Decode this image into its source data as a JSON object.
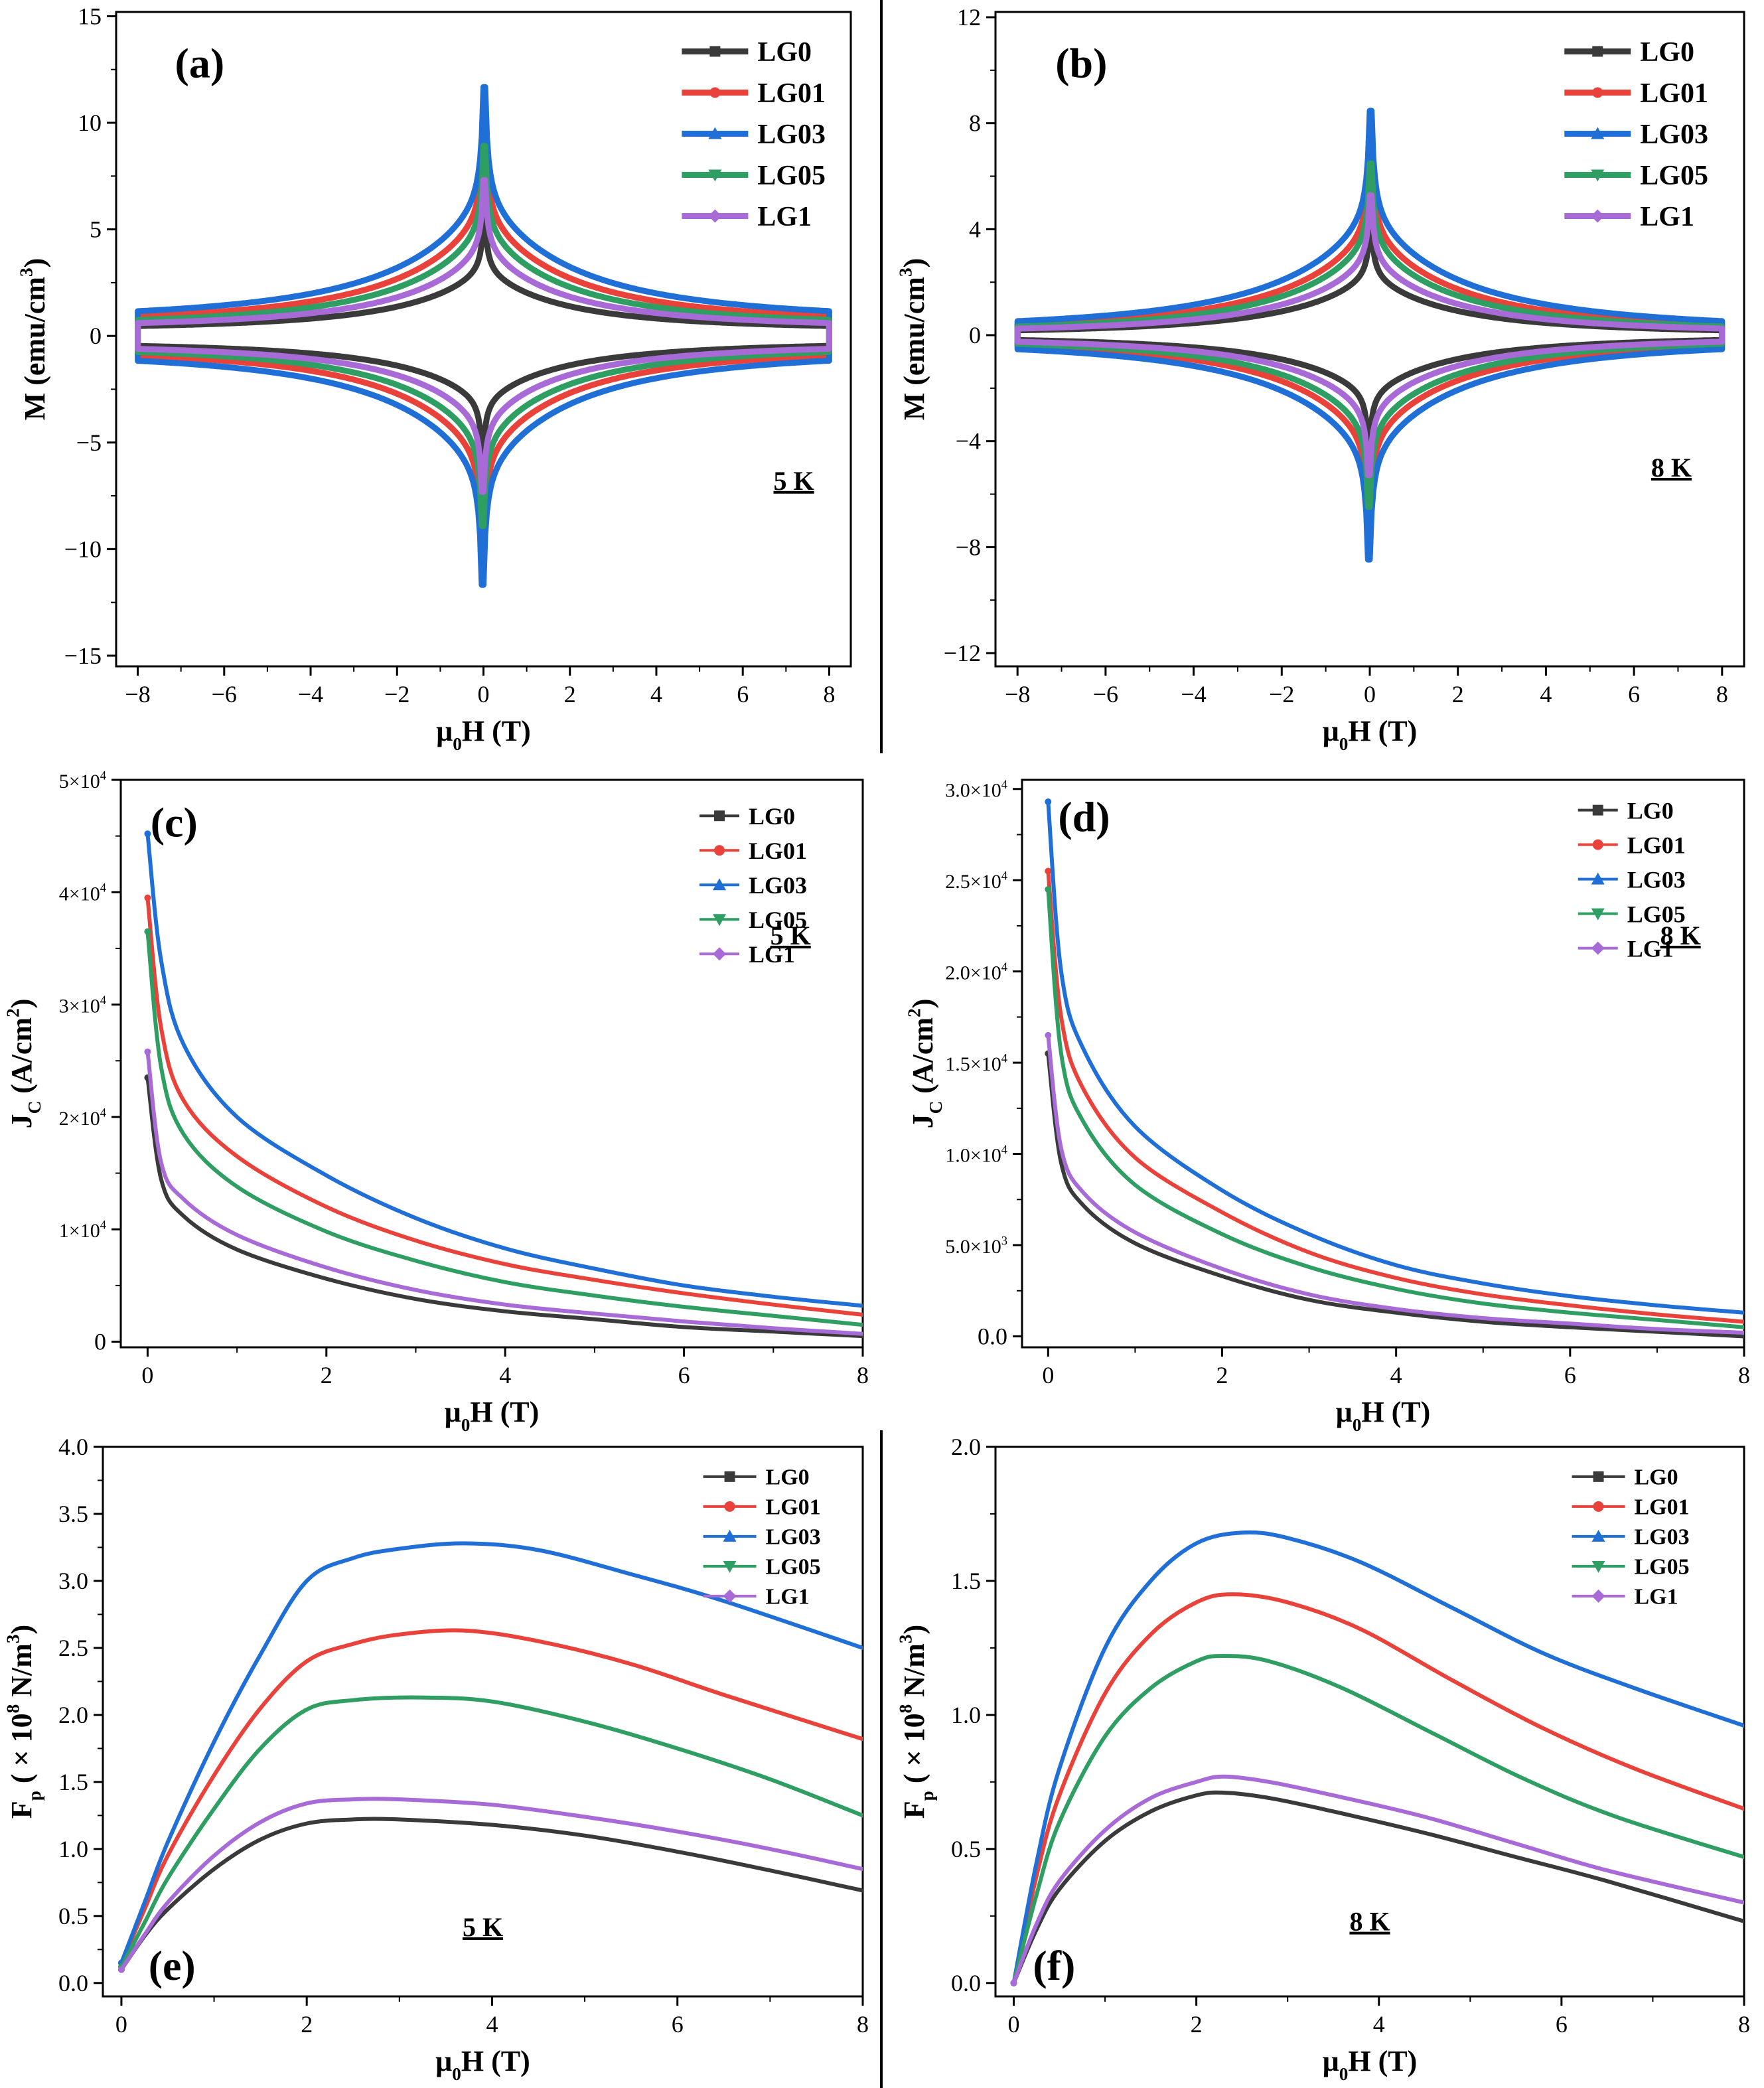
{
  "colors": {
    "LG0": "#3a3a3a",
    "LG01": "#e8423a",
    "LG03": "#1f6fd6",
    "LG05": "#2e9e62",
    "LG1": "#a86ad6",
    "axis": "#000000"
  },
  "chart_data": [
    {
      "id": "a",
      "type": "line",
      "panel_label": "(a)",
      "temp_label": "5 K",
      "xlabel": "μ0H (T)",
      "ylabel": "M (emu/cm3)",
      "xlim": [
        -8.5,
        8.5
      ],
      "ylim": [
        -15.5,
        15.2
      ],
      "xticks": [
        -8,
        -6,
        -4,
        -2,
        0,
        2,
        4,
        6,
        8
      ],
      "yticks": [
        -15,
        -10,
        -5,
        0,
        5,
        10,
        15
      ],
      "legend_position": "top-right",
      "series": [
        {
          "name": "LG0",
          "peak": 7.2,
          "plateau": 0.3,
          "width": 0.9
        },
        {
          "name": "LG01",
          "peak": 13.1,
          "plateau": 0.55,
          "width": 1.0
        },
        {
          "name": "LG03",
          "peak": 14.9,
          "plateau": 0.7,
          "width": 1.05
        },
        {
          "name": "LG05",
          "peak": 11.6,
          "plateau": 0.45,
          "width": 0.95
        },
        {
          "name": "LG1",
          "peak": 9.6,
          "plateau": 0.38,
          "width": 0.9
        }
      ]
    },
    {
      "id": "b",
      "type": "line",
      "panel_label": "(b)",
      "temp_label": "8 K",
      "xlabel": "μ0H (T)",
      "ylabel": "M (emu/cm3)",
      "xlim": [
        -8.5,
        8.5
      ],
      "ylim": [
        -12.5,
        12.2
      ],
      "xticks": [
        -8,
        -6,
        -4,
        -2,
        0,
        2,
        4,
        6,
        8
      ],
      "yticks": [
        -12,
        -8,
        -4,
        0,
        4,
        8,
        12
      ],
      "legend_position": "top-right",
      "series": [
        {
          "name": "LG0",
          "peak": 5.5,
          "plateau": 0.05,
          "width": 0.9
        },
        {
          "name": "LG01",
          "peak": 9.5,
          "plateau": 0.12,
          "width": 1.0
        },
        {
          "name": "LG03",
          "peak": 10.9,
          "plateau": 0.18,
          "width": 1.05
        },
        {
          "name": "LG05",
          "peak": 8.5,
          "plateau": 0.1,
          "width": 0.95
        },
        {
          "name": "LG1",
          "peak": 7.0,
          "plateau": 0.08,
          "width": 0.9
        }
      ]
    },
    {
      "id": "c",
      "type": "line",
      "panel_label": "(c)",
      "temp_label": "5 K",
      "xlabel": "μ0H (T)",
      "ylabel": "JC (A/cm2)",
      "xlim": [
        -0.3,
        8
      ],
      "ylim": [
        -500,
        50000
      ],
      "xticks": [
        0,
        2,
        4,
        6,
        8
      ],
      "yticks": [
        0,
        10000,
        20000,
        30000,
        40000,
        50000
      ],
      "ytick_labels": [
        "0",
        "1×104",
        "2×104",
        "3×104",
        "4×104",
        "5×104"
      ],
      "legend_position": "top-center",
      "series": [
        {
          "name": "LG0",
          "x": [
            0.0,
            0.15,
            0.4,
            1.0,
            2.0,
            3.0,
            4.0,
            5.0,
            6.0,
            7.0,
            8.0
          ],
          "values": [
            23500,
            14500,
            11200,
            8200,
            5600,
            3800,
            2700,
            2000,
            1300,
            900,
            500
          ]
        },
        {
          "name": "LG01",
          "x": [
            0.0,
            0.15,
            0.4,
            1.0,
            2.0,
            3.0,
            4.0,
            5.0,
            6.0,
            7.0,
            8.0
          ],
          "values": [
            39500,
            28000,
            21500,
            16500,
            12000,
            9000,
            6900,
            5500,
            4300,
            3300,
            2400
          ]
        },
        {
          "name": "LG03",
          "x": [
            0.0,
            0.15,
            0.4,
            1.0,
            2.0,
            3.0,
            4.0,
            5.0,
            6.0,
            7.0,
            8.0
          ],
          "values": [
            45200,
            34000,
            26500,
            20000,
            14800,
            11000,
            8300,
            6500,
            5000,
            4000,
            3200
          ]
        },
        {
          "name": "LG05",
          "x": [
            0.0,
            0.15,
            0.4,
            1.0,
            2.0,
            3.0,
            4.0,
            5.0,
            6.0,
            7.0,
            8.0
          ],
          "values": [
            36500,
            24500,
            18500,
            13800,
            9800,
            7200,
            5300,
            4100,
            3100,
            2300,
            1500
          ]
        },
        {
          "name": "LG1",
          "x": [
            0.0,
            0.15,
            0.4,
            1.0,
            2.0,
            3.0,
            4.0,
            5.0,
            6.0,
            7.0,
            8.0
          ],
          "values": [
            25800,
            16000,
            12700,
            9500,
            6600,
            4600,
            3300,
            2500,
            1800,
            1200,
            700
          ]
        }
      ]
    },
    {
      "id": "d",
      "type": "line",
      "panel_label": "(d)",
      "temp_label": "8 K",
      "xlabel": "μ0H (T)",
      "ylabel": "JC (A/cm2)",
      "xlim": [
        -0.3,
        8
      ],
      "ylim": [
        -600,
        30500
      ],
      "xticks": [
        0,
        2,
        4,
        6,
        8
      ],
      "yticks": [
        0,
        5000,
        10000,
        15000,
        20000,
        25000,
        30000
      ],
      "ytick_labels": [
        "0.0",
        "5.0×103",
        "1.0×104",
        "1.5×104",
        "2.0×104",
        "2.5×104",
        "3.0×104"
      ],
      "legend_position": "top-right",
      "series": [
        {
          "name": "LG0",
          "x": [
            0.0,
            0.15,
            0.4,
            1.0,
            2.0,
            3.0,
            4.0,
            5.0,
            6.0,
            7.0,
            8.0
          ],
          "values": [
            15500,
            9500,
            7200,
            5100,
            3300,
            2000,
            1300,
            800,
            500,
            250,
            0
          ]
        },
        {
          "name": "LG01",
          "x": [
            0.0,
            0.15,
            0.4,
            1.0,
            2.0,
            3.0,
            4.0,
            5.0,
            6.0,
            7.0,
            8.0
          ],
          "values": [
            25500,
            17500,
            13600,
            9800,
            6800,
            4600,
            3200,
            2300,
            1700,
            1200,
            800
          ]
        },
        {
          "name": "LG03",
          "x": [
            0.0,
            0.15,
            0.4,
            1.0,
            2.0,
            3.0,
            4.0,
            5.0,
            6.0,
            7.0,
            8.0
          ],
          "values": [
            29300,
            20000,
            15800,
            11500,
            8000,
            5600,
            3900,
            2900,
            2200,
            1700,
            1300
          ]
        },
        {
          "name": "LG05",
          "x": [
            0.0,
            0.15,
            0.4,
            1.0,
            2.0,
            3.0,
            4.0,
            5.0,
            6.0,
            7.0,
            8.0
          ],
          "values": [
            24500,
            15500,
            11800,
            8300,
            5600,
            3800,
            2600,
            1800,
            1300,
            900,
            500
          ]
        },
        {
          "name": "LG1",
          "x": [
            0.0,
            0.15,
            0.4,
            1.0,
            2.0,
            3.0,
            4.0,
            5.0,
            6.0,
            7.0,
            8.0
          ],
          "values": [
            16500,
            10300,
            7900,
            5700,
            3700,
            2300,
            1500,
            1000,
            700,
            400,
            200
          ]
        }
      ]
    },
    {
      "id": "e",
      "type": "line",
      "panel_label": "(e)",
      "temp_label": "5 K",
      "xlabel": "μ0H (T)",
      "ylabel": "Fp ( × 108 N/m3)",
      "xlim": [
        -0.2,
        8
      ],
      "ylim": [
        -0.1,
        4.0
      ],
      "xticks": [
        0,
        2,
        4,
        6,
        8
      ],
      "yticks": [
        0.0,
        0.5,
        1.0,
        1.5,
        2.0,
        2.5,
        3.0,
        3.5,
        4.0
      ],
      "ytick_labels": [
        "0.0",
        "0.5",
        "1.0",
        "1.5",
        "2.0",
        "2.5",
        "3.0",
        "3.5",
        "4.0"
      ],
      "legend_position": "top-right",
      "series": [
        {
          "name": "LG0",
          "x": [
            0,
            0.25,
            0.5,
            1.0,
            1.5,
            2.0,
            2.5,
            3.0,
            4.0,
            5.0,
            6.0,
            7.0,
            8.0
          ],
          "values": [
            0.1,
            0.35,
            0.55,
            0.85,
            1.07,
            1.19,
            1.22,
            1.22,
            1.18,
            1.1,
            0.98,
            0.84,
            0.69
          ]
        },
        {
          "name": "LG01",
          "x": [
            0,
            0.25,
            0.5,
            1.0,
            1.5,
            2.0,
            2.5,
            3.0,
            3.7,
            4.5,
            5.5,
            6.5,
            8.0
          ],
          "values": [
            0.15,
            0.55,
            0.95,
            1.55,
            2.05,
            2.4,
            2.53,
            2.6,
            2.63,
            2.55,
            2.38,
            2.15,
            1.82
          ]
        },
        {
          "name": "LG03",
          "x": [
            0,
            0.25,
            0.5,
            1.0,
            1.5,
            2.0,
            2.5,
            3.0,
            3.7,
            4.5,
            5.5,
            6.5,
            8.0
          ],
          "values": [
            0.15,
            0.6,
            1.05,
            1.8,
            2.45,
            3.0,
            3.17,
            3.24,
            3.28,
            3.23,
            3.05,
            2.85,
            2.5
          ]
        },
        {
          "name": "LG05",
          "x": [
            0,
            0.25,
            0.5,
            1.0,
            1.5,
            2.0,
            2.5,
            3.2,
            4.0,
            5.0,
            6.0,
            7.0,
            8.0
          ],
          "values": [
            0.12,
            0.45,
            0.78,
            1.3,
            1.75,
            2.04,
            2.11,
            2.13,
            2.1,
            1.95,
            1.75,
            1.52,
            1.25
          ]
        },
        {
          "name": "LG1",
          "x": [
            0,
            0.25,
            0.5,
            1.0,
            1.5,
            2.0,
            2.5,
            3.0,
            4.0,
            5.0,
            6.0,
            7.0,
            8.0
          ],
          "values": [
            0.1,
            0.36,
            0.6,
            0.95,
            1.2,
            1.34,
            1.37,
            1.37,
            1.33,
            1.24,
            1.13,
            1.0,
            0.85
          ]
        }
      ]
    },
    {
      "id": "f",
      "type": "line",
      "panel_label": "(f)",
      "temp_label": "8 K",
      "xlabel": "μ0H (T)",
      "ylabel": "Fp ( × 108 N/m3)",
      "xlim": [
        -0.2,
        8
      ],
      "ylim": [
        -0.05,
        2.0
      ],
      "xticks": [
        0,
        2,
        4,
        6,
        8
      ],
      "yticks": [
        0.0,
        0.5,
        1.0,
        1.5,
        2.0
      ],
      "ytick_labels": [
        "0.0",
        "0.5",
        "1.0",
        "1.5",
        "2.0"
      ],
      "legend_position": "top-right",
      "series": [
        {
          "name": "LG0",
          "x": [
            0,
            0.25,
            0.5,
            1.0,
            1.5,
            2.0,
            2.3,
            2.8,
            3.5,
            4.5,
            5.5,
            6.5,
            8.0
          ],
          "values": [
            0.0,
            0.2,
            0.35,
            0.53,
            0.64,
            0.7,
            0.71,
            0.69,
            0.64,
            0.56,
            0.47,
            0.38,
            0.23
          ]
        },
        {
          "name": "LG01",
          "x": [
            0,
            0.25,
            0.5,
            1.0,
            1.5,
            2.0,
            2.4,
            3.0,
            3.8,
            4.8,
            5.8,
            6.8,
            8.0
          ],
          "values": [
            0.0,
            0.4,
            0.7,
            1.08,
            1.3,
            1.42,
            1.45,
            1.42,
            1.32,
            1.13,
            0.95,
            0.8,
            0.65
          ]
        },
        {
          "name": "LG03",
          "x": [
            0,
            0.25,
            0.5,
            1.0,
            1.5,
            2.0,
            2.5,
            3.0,
            3.8,
            4.8,
            5.8,
            6.8,
            8.0
          ],
          "values": [
            0.0,
            0.45,
            0.8,
            1.25,
            1.5,
            1.64,
            1.68,
            1.66,
            1.57,
            1.4,
            1.23,
            1.1,
            0.96
          ]
        },
        {
          "name": "LG05",
          "x": [
            0,
            0.25,
            0.5,
            1.0,
            1.5,
            2.0,
            2.3,
            2.8,
            3.6,
            4.6,
            5.6,
            6.6,
            8.0
          ],
          "values": [
            0.0,
            0.33,
            0.6,
            0.92,
            1.1,
            1.2,
            1.22,
            1.2,
            1.1,
            0.93,
            0.76,
            0.62,
            0.47
          ]
        },
        {
          "name": "LG1",
          "x": [
            0,
            0.25,
            0.5,
            1.0,
            1.5,
            2.0,
            2.3,
            2.8,
            3.5,
            4.5,
            5.5,
            6.5,
            8.0
          ],
          "values": [
            0.0,
            0.22,
            0.38,
            0.57,
            0.69,
            0.75,
            0.77,
            0.75,
            0.7,
            0.62,
            0.52,
            0.42,
            0.3
          ]
        }
      ]
    }
  ]
}
